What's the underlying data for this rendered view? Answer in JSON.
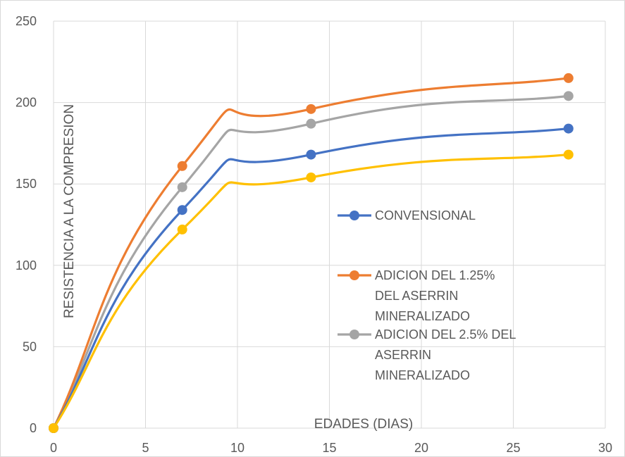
{
  "chart_data": {
    "type": "line",
    "xlabel": "EDADES (DIAS)",
    "ylabel": "RESISTENCIA A LA COMPRESION",
    "xlim": [
      0,
      30
    ],
    "ylim": [
      0,
      250
    ],
    "x_ticks": [
      "0",
      "5",
      "10",
      "15",
      "20",
      "25",
      "30"
    ],
    "y_ticks": [
      "0",
      "50",
      "100",
      "150",
      "200",
      "250"
    ],
    "grid": true,
    "smooth": true,
    "legend_position": "center-right",
    "series": [
      {
        "name": "CONVENSIONAL",
        "legend_lines": [
          "CONVENSIONAL"
        ],
        "color": "#4472C4",
        "points": [
          [
            0,
            0
          ],
          [
            7,
            134
          ],
          [
            14,
            168
          ],
          [
            28,
            184
          ]
        ]
      },
      {
        "name": "ADICION DEL 1.25% DEL ASERRIN MINERALIZADO",
        "legend_lines": [
          "ADICION DEL 1.25%",
          "DEL ASERRIN",
          "MINERALIZADO"
        ],
        "color": "#ED7D31",
        "points": [
          [
            0,
            0
          ],
          [
            7,
            161
          ],
          [
            14,
            196
          ],
          [
            28,
            215
          ]
        ]
      },
      {
        "name": "ADICION DEL 2.5% DEL ASERRIN MINERALIZADO",
        "legend_lines": [
          "ADICION DEL 2.5% DEL",
          "ASERRIN",
          "MINERALIZADO"
        ],
        "color": "#A5A5A5",
        "points": [
          [
            0,
            0
          ],
          [
            7,
            148
          ],
          [
            14,
            187
          ],
          [
            28,
            204
          ]
        ]
      },
      {
        "name": "",
        "color": "#FFC000",
        "points": [
          [
            0,
            0
          ],
          [
            7,
            122
          ],
          [
            14,
            154
          ],
          [
            28,
            168
          ]
        ]
      }
    ]
  }
}
